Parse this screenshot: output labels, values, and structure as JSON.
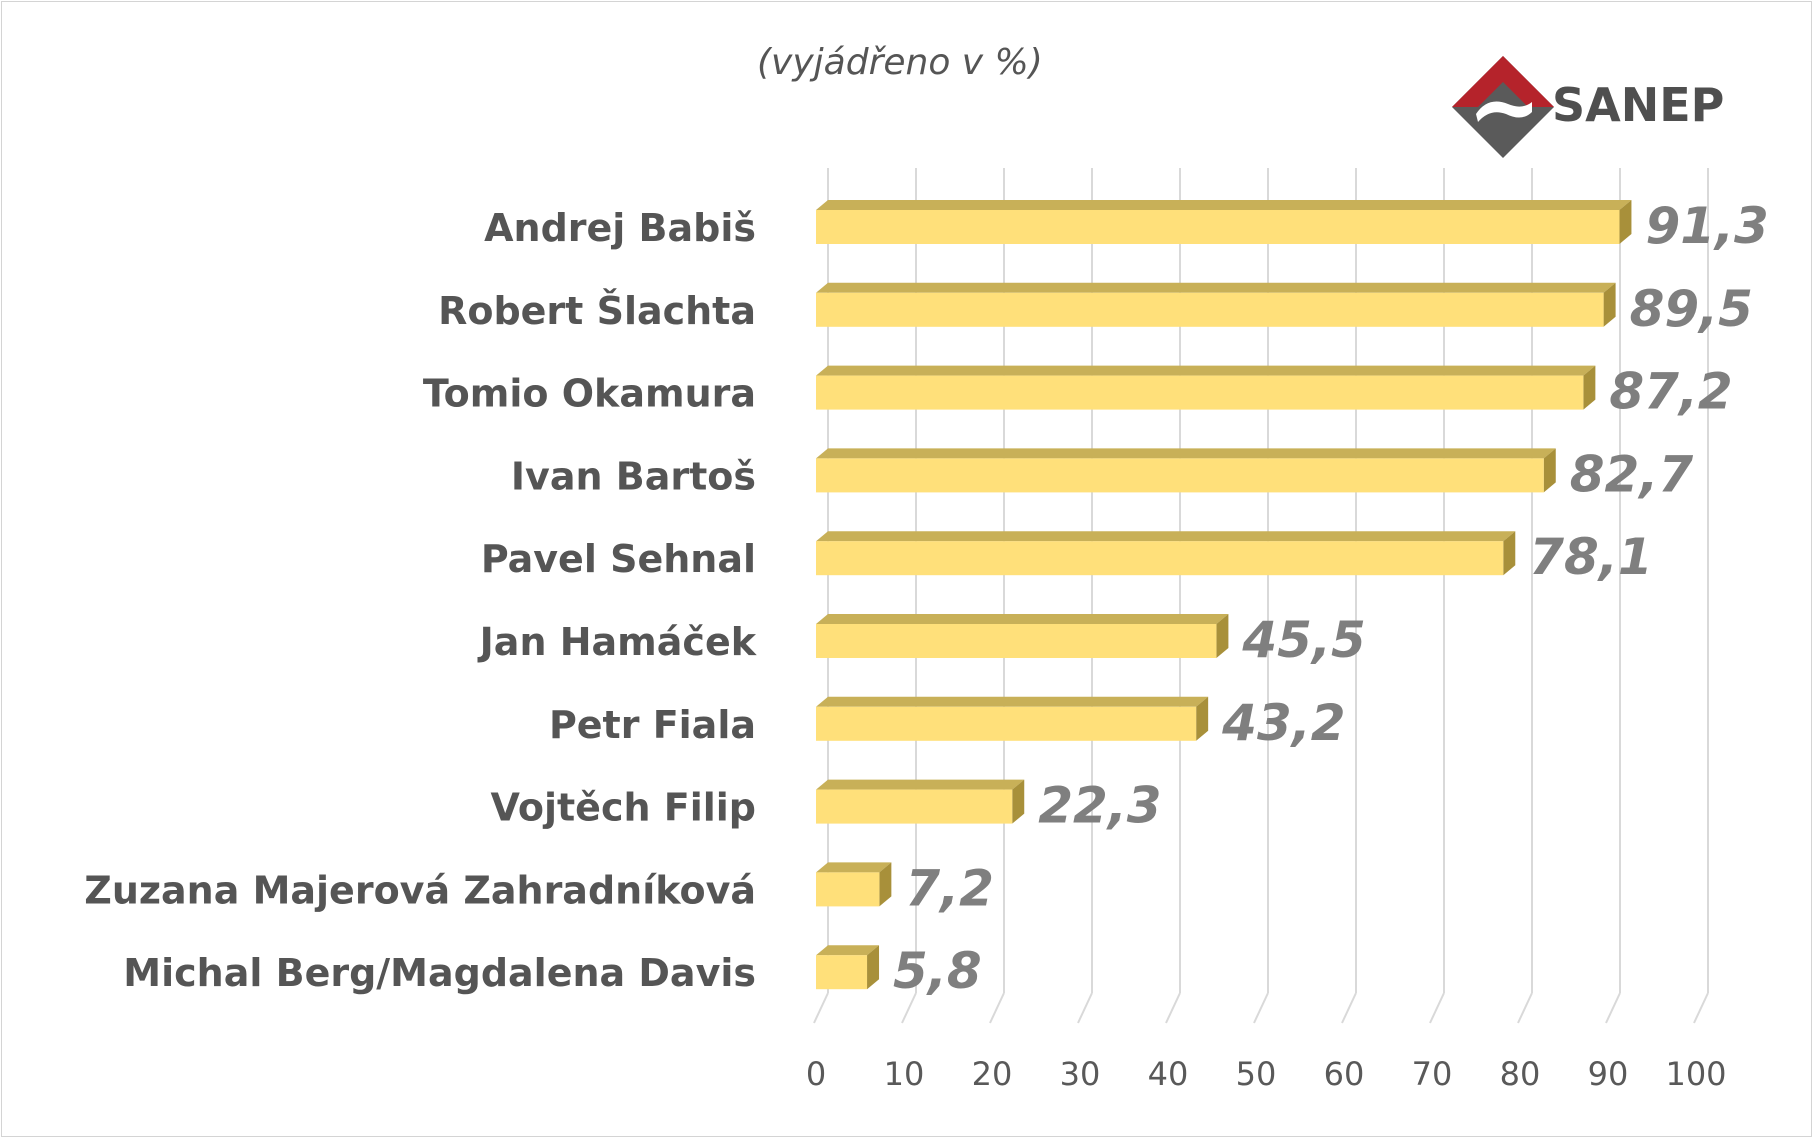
{
  "chart_data": {
    "type": "bar",
    "orientation": "horizontal",
    "subtitle": "(vyjádřeno v %)",
    "categories": [
      "Andrej Babiš",
      "Robert Šlachta",
      "Tomio Okamura",
      "Ivan Bartoš",
      "Pavel Sehnal",
      "Jan Hamáček",
      "Petr Fiala",
      "Vojtěch Filip",
      "Zuzana Majerová Zahradníková",
      "Michal Berg/Magdalena Davis"
    ],
    "values": [
      91.3,
      89.5,
      87.2,
      82.7,
      78.1,
      45.5,
      43.2,
      22.3,
      7.2,
      5.8
    ],
    "value_labels": [
      "91,3",
      "89,5",
      "87,2",
      "82,7",
      "78,1",
      "45,5",
      "43,2",
      "22,3",
      "7,2",
      "5,8"
    ],
    "xlim": [
      0,
      100
    ],
    "xticks": [
      0,
      10,
      20,
      30,
      40,
      50,
      60,
      70,
      80,
      90,
      100
    ],
    "grid": true,
    "colors": {
      "bar_front": "#FFE07A",
      "bar_top": "#C8B058",
      "bar_side": "#A8903A",
      "grid": "#d9d9d9"
    }
  },
  "logo": {
    "text": "SANEP",
    "colors": {
      "red": "#B5232B",
      "gray": "#5a5a5a"
    }
  }
}
